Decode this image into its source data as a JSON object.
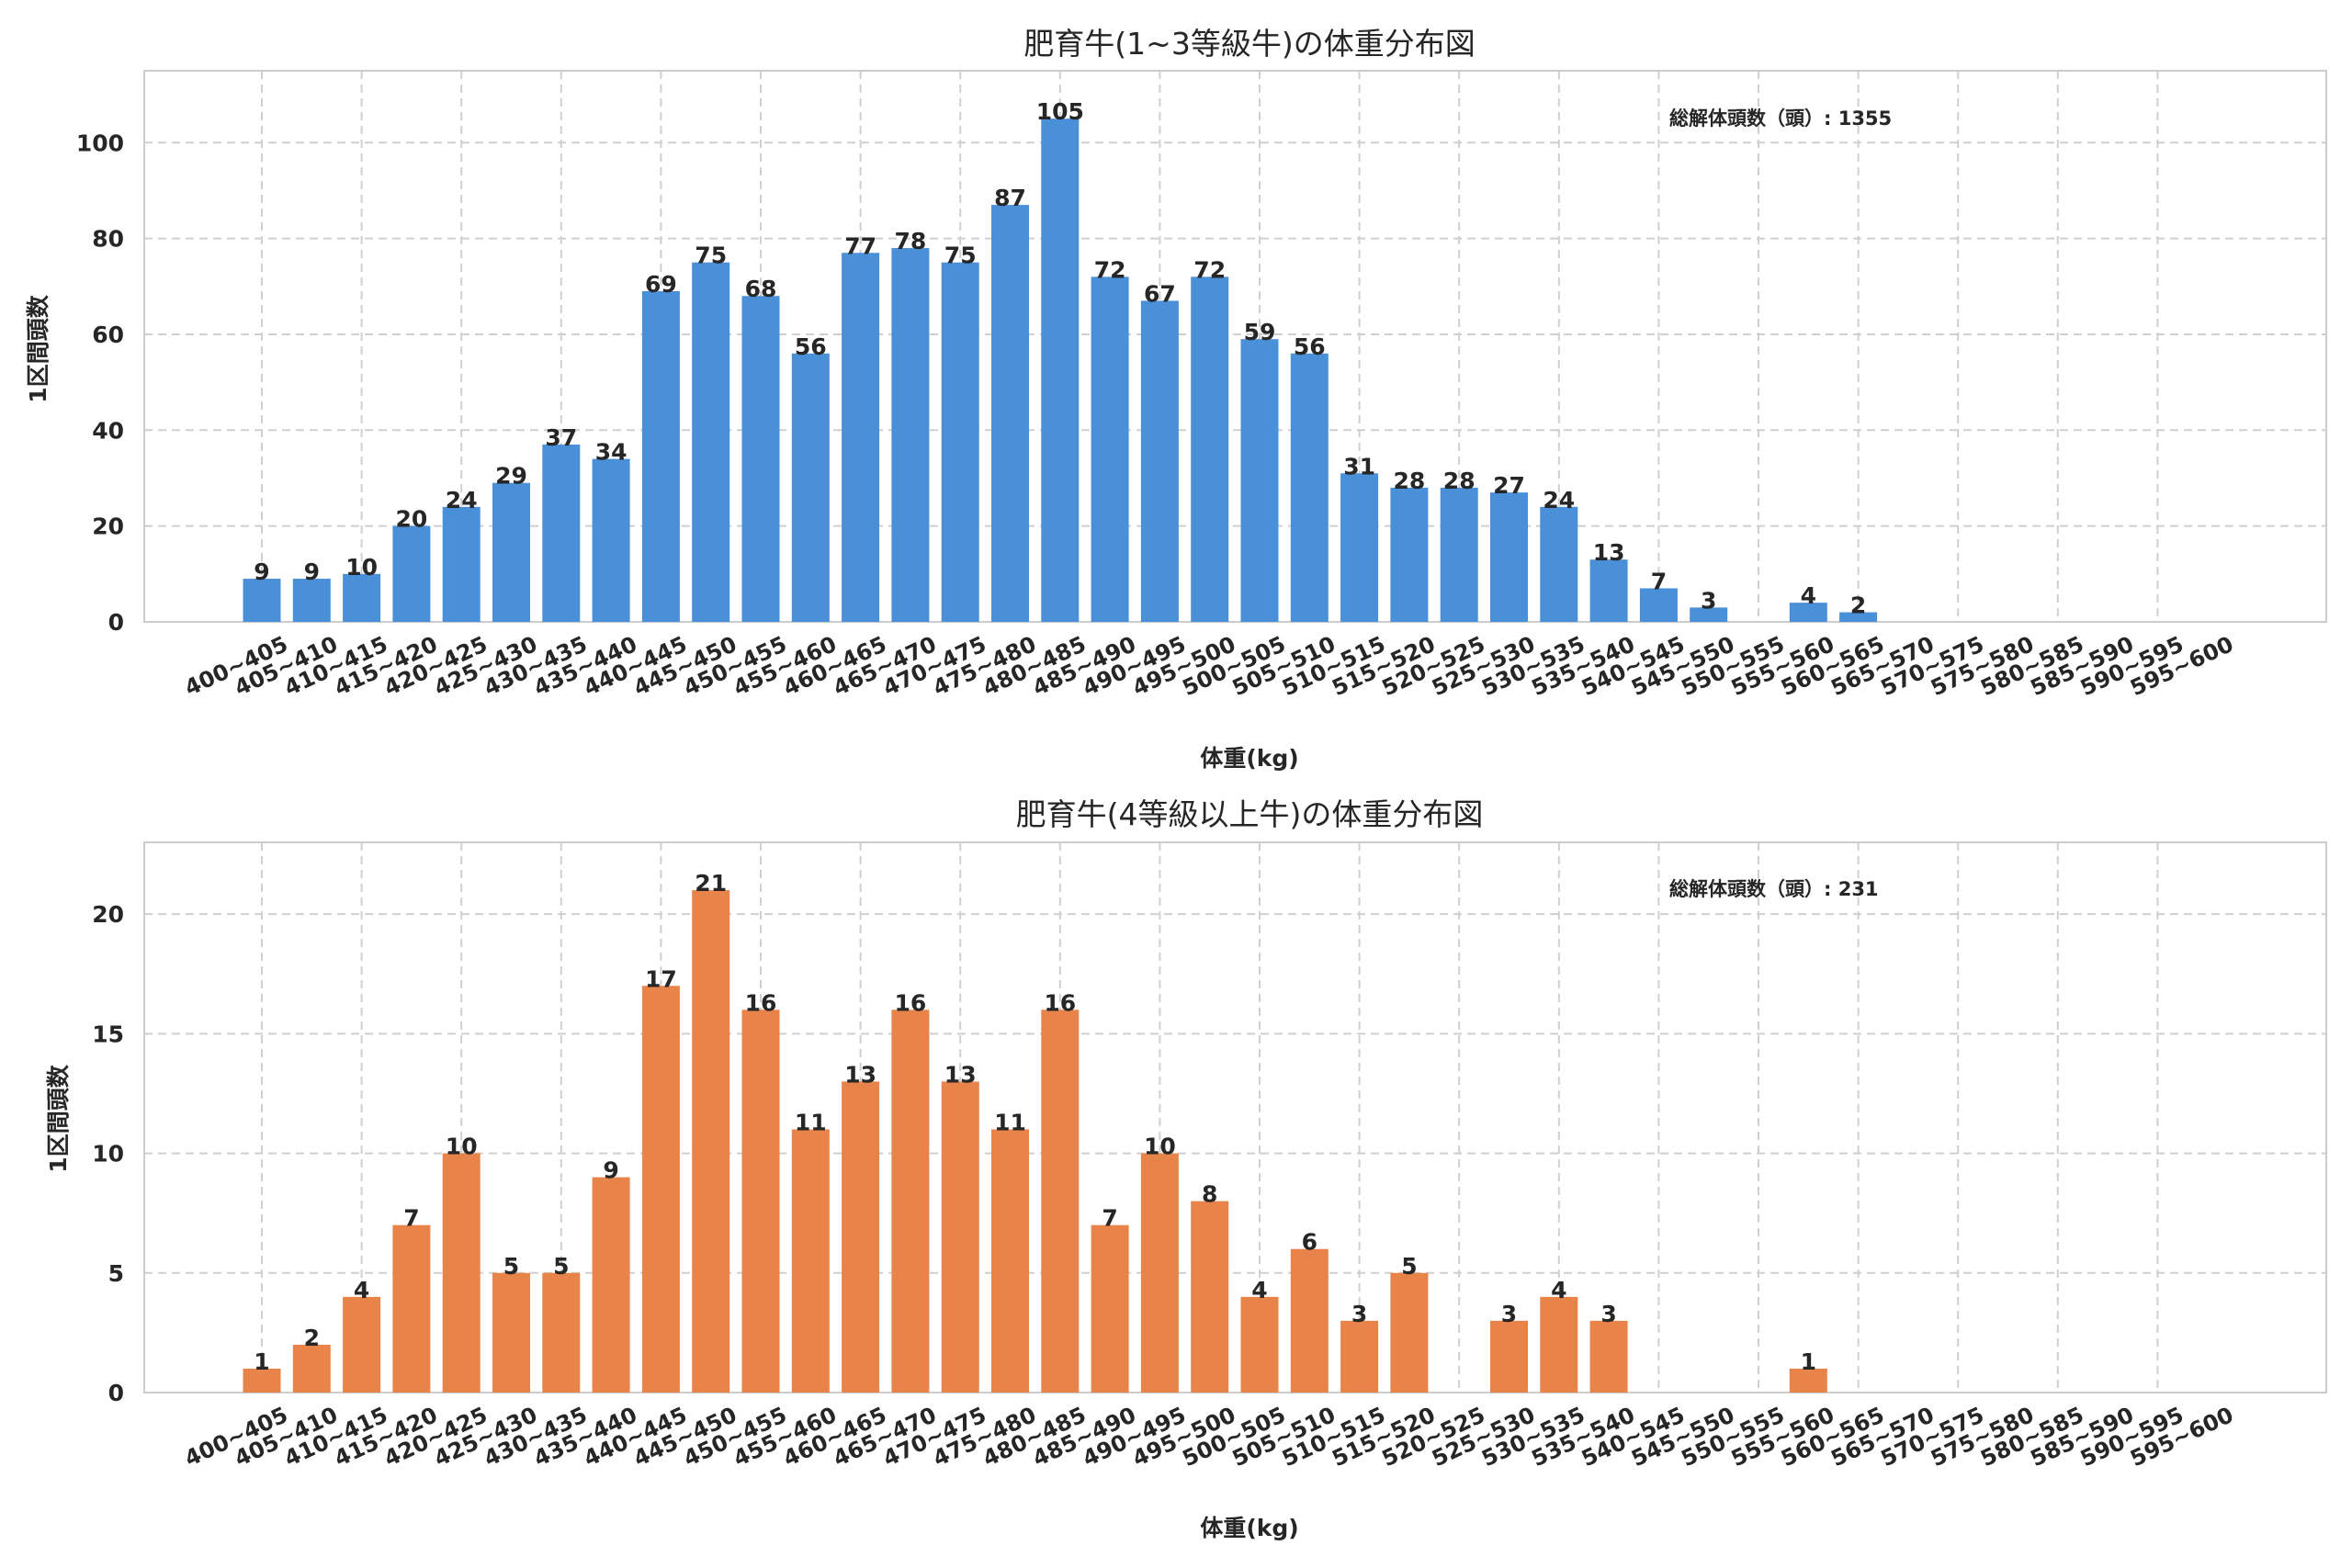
{
  "chart_data": [
    {
      "type": "bar",
      "title": "肥育牛(1~3等級牛)の体重分布図",
      "xlabel": "体重(kg)",
      "ylabel": "1区間頭数",
      "ylim": [
        0,
        115
      ],
      "yticks": [
        0,
        20,
        40,
        60,
        80,
        100
      ],
      "grid": true,
      "color": "#4a90d9",
      "annotation": "総解体頭数（頭）: 1355",
      "categories": [
        "400~405",
        "405~410",
        "410~415",
        "415~420",
        "420~425",
        "425~430",
        "430~435",
        "435~440",
        "440~445",
        "445~450",
        "450~455",
        "455~460",
        "460~465",
        "465~470",
        "470~475",
        "475~480",
        "480~485",
        "485~490",
        "490~495",
        "495~500",
        "500~505",
        "505~510",
        "510~515",
        "515~520",
        "520~525",
        "525~530",
        "530~535",
        "535~540",
        "540~545",
        "545~550",
        "550~555",
        "555~560",
        "560~565",
        "565~570",
        "570~575",
        "575~580",
        "580~585",
        "585~590",
        "590~595",
        "595~600"
      ],
      "values": [
        9,
        9,
        10,
        20,
        24,
        29,
        37,
        34,
        69,
        75,
        68,
        56,
        77,
        78,
        75,
        87,
        105,
        72,
        67,
        72,
        59,
        56,
        31,
        28,
        28,
        27,
        24,
        13,
        7,
        3,
        0,
        4,
        2,
        0,
        0,
        0,
        0,
        0,
        0,
        0
      ]
    },
    {
      "type": "bar",
      "title": "肥育牛(4等級以上牛)の体重分布図",
      "xlabel": "体重(kg)",
      "ylabel": "1区間頭数",
      "ylim": [
        0,
        23
      ],
      "yticks": [
        0,
        5,
        10,
        15,
        20
      ],
      "grid": true,
      "color": "#e8834a",
      "annotation": "総解体頭数（頭）: 231",
      "categories": [
        "400~405",
        "405~410",
        "410~415",
        "415~420",
        "420~425",
        "425~430",
        "430~435",
        "435~440",
        "440~445",
        "445~450",
        "450~455",
        "455~460",
        "460~465",
        "465~470",
        "470~475",
        "475~480",
        "480~485",
        "485~490",
        "490~495",
        "495~500",
        "500~505",
        "505~510",
        "510~515",
        "515~520",
        "520~525",
        "525~530",
        "530~535",
        "535~540",
        "540~545",
        "545~550",
        "550~555",
        "555~560",
        "560~565",
        "565~570",
        "570~575",
        "575~580",
        "580~585",
        "585~590",
        "590~595",
        "595~600"
      ],
      "values": [
        1,
        2,
        4,
        7,
        10,
        5,
        5,
        9,
        17,
        21,
        16,
        11,
        13,
        16,
        13,
        11,
        16,
        7,
        10,
        8,
        4,
        6,
        3,
        5,
        0,
        3,
        4,
        3,
        0,
        0,
        0,
        1,
        0,
        0,
        0,
        0,
        0,
        0,
        0,
        0
      ]
    }
  ]
}
